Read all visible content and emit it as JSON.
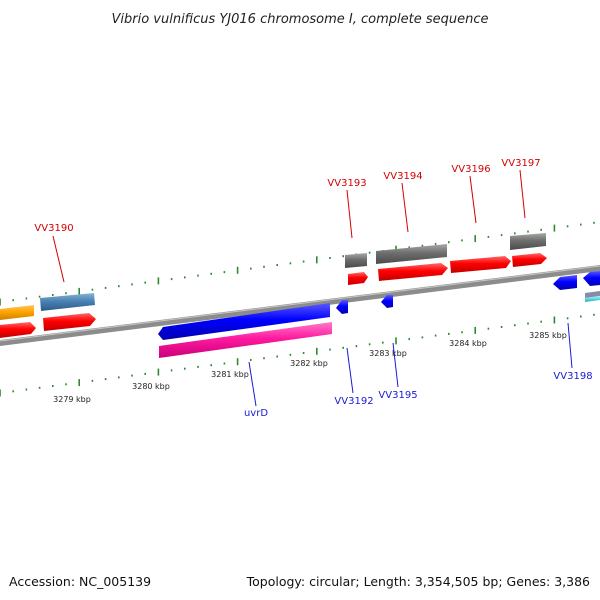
{
  "header": {
    "title": "Vibrio vulnificus YJ016 chromosome I, complete sequence"
  },
  "footer": {
    "accession": "Accession: NC_005139",
    "summary": "Topology: circular; Length: 3,354,505 bp; Genes: 3,386"
  },
  "scale": {
    "ticks": [
      "3279 kbp",
      "3280 kbp",
      "3281 kbp",
      "3282 kbp",
      "3283 kbp",
      "3284 kbp",
      "3285 kbp"
    ]
  },
  "genes_forward": [
    {
      "label": "VV3190",
      "color": "#d40000"
    },
    {
      "label": "VV3193",
      "color": "#d40000"
    },
    {
      "label": "VV3194",
      "color": "#d40000"
    },
    {
      "label": "VV3196",
      "color": "#d40000"
    },
    {
      "label": "VV3197",
      "color": "#d40000"
    }
  ],
  "genes_reverse": [
    {
      "label": "uvrD",
      "color": "#1a1ad4"
    },
    {
      "label": "VV3192",
      "color": "#1a1ad4"
    },
    {
      "label": "VV3195",
      "color": "#1a1ad4"
    },
    {
      "label": "VV3198",
      "color": "#1a1ad4"
    }
  ],
  "colors": {
    "cds_forward": "#ff0000",
    "cds_reverse": "#0000ff",
    "gene_gray": "#6e6e6e",
    "orange": "#ffa500",
    "steel": "#4a82b4",
    "pink": "#ff1aa0",
    "backbone": "#8c8c8c",
    "tick": "#2e8b2e"
  }
}
